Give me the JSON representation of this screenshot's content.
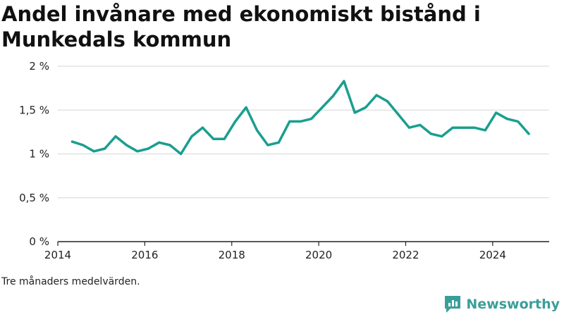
{
  "chart_data": {
    "type": "line",
    "title": "Andel invånare med ekonomiskt bistånd i Munkedals kommun",
    "note": "Tre månaders medelvärden.",
    "ylim": [
      0,
      2
    ],
    "y_ticks": [
      {
        "value": 0,
        "label": "0 %"
      },
      {
        "value": 0.5,
        "label": "0,5 %"
      },
      {
        "value": 1,
        "label": "1 %"
      },
      {
        "value": 1.5,
        "label": "1,5 %"
      },
      {
        "value": 2,
        "label": "2 %"
      }
    ],
    "xlim": [
      2014.0,
      2025.3
    ],
    "x_ticks": [
      {
        "value": 2014,
        "label": "2014"
      },
      {
        "value": 2016,
        "label": "2016"
      },
      {
        "value": 2018,
        "label": "2018"
      },
      {
        "value": 2020,
        "label": "2020"
      },
      {
        "value": 2022,
        "label": "2022"
      },
      {
        "value": 2024,
        "label": "2024"
      }
    ],
    "grid": true,
    "line_color": "#1a9e8f",
    "series": [
      {
        "x": [
          2014.33,
          2014.58,
          2014.83,
          2015.08,
          2015.33,
          2015.58,
          2015.83,
          2016.08,
          2016.33,
          2016.58,
          2016.83,
          2017.08,
          2017.33,
          2017.58,
          2017.83,
          2018.08,
          2018.33,
          2018.58,
          2018.83,
          2019.08,
          2019.33,
          2019.58,
          2019.83,
          2020.08,
          2020.33,
          2020.58,
          2020.83,
          2021.08,
          2021.33,
          2021.58,
          2021.83,
          2022.08,
          2022.33,
          2022.58,
          2022.83,
          2023.08,
          2023.33,
          2023.58,
          2023.83,
          2024.08,
          2024.33,
          2024.58,
          2024.83
        ],
        "values": [
          1.14,
          1.1,
          1.03,
          1.06,
          1.2,
          1.1,
          1.03,
          1.06,
          1.13,
          1.1,
          1.0,
          1.2,
          1.3,
          1.17,
          1.17,
          1.37,
          1.53,
          1.27,
          1.1,
          1.13,
          1.37,
          1.37,
          1.4,
          1.53,
          1.66,
          1.83,
          1.47,
          1.53,
          1.67,
          1.6,
          1.45,
          1.3,
          1.33,
          1.23,
          1.2,
          1.3,
          1.3,
          1.3,
          1.27,
          1.47,
          1.4,
          1.37,
          1.23
        ]
      }
    ]
  },
  "brand": {
    "name": "Newsworthy",
    "icon": "newsworthy-logo-icon"
  }
}
